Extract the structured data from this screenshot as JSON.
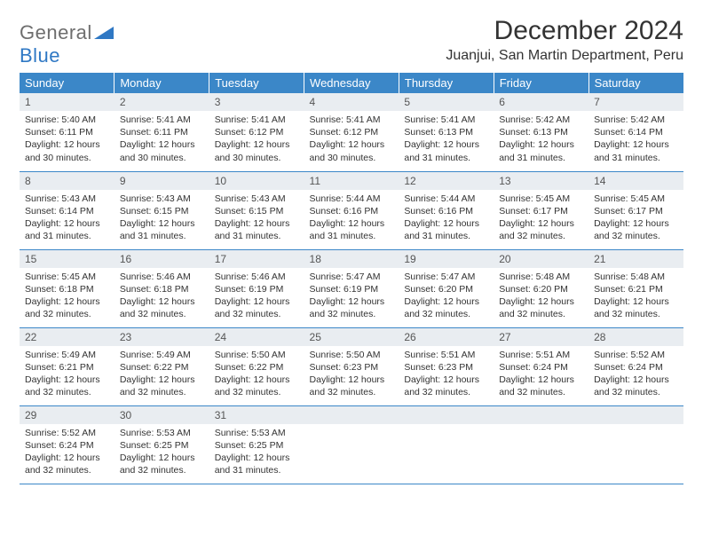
{
  "logo": {
    "word1": "General",
    "word2": "Blue",
    "word1_color": "#6e6e6e",
    "word2_color": "#2f78c4",
    "shape_color": "#2f78c4"
  },
  "title": "December 2024",
  "location": "Juanjui, San Martin Department, Peru",
  "header_bg": "#3b87c8",
  "header_fg": "#ffffff",
  "daynum_bg": "#e9edf1",
  "rule_color": "#3b87c8",
  "text_color": "#333333",
  "body_fontsize": 10.5,
  "weekdays": [
    "Sunday",
    "Monday",
    "Tuesday",
    "Wednesday",
    "Thursday",
    "Friday",
    "Saturday"
  ],
  "days": [
    {
      "n": "1",
      "sunrise": "5:40 AM",
      "sunset": "6:11 PM",
      "day_h": "12",
      "day_m": "30"
    },
    {
      "n": "2",
      "sunrise": "5:41 AM",
      "sunset": "6:11 PM",
      "day_h": "12",
      "day_m": "30"
    },
    {
      "n": "3",
      "sunrise": "5:41 AM",
      "sunset": "6:12 PM",
      "day_h": "12",
      "day_m": "30"
    },
    {
      "n": "4",
      "sunrise": "5:41 AM",
      "sunset": "6:12 PM",
      "day_h": "12",
      "day_m": "30"
    },
    {
      "n": "5",
      "sunrise": "5:41 AM",
      "sunset": "6:13 PM",
      "day_h": "12",
      "day_m": "31"
    },
    {
      "n": "6",
      "sunrise": "5:42 AM",
      "sunset": "6:13 PM",
      "day_h": "12",
      "day_m": "31"
    },
    {
      "n": "7",
      "sunrise": "5:42 AM",
      "sunset": "6:14 PM",
      "day_h": "12",
      "day_m": "31"
    },
    {
      "n": "8",
      "sunrise": "5:43 AM",
      "sunset": "6:14 PM",
      "day_h": "12",
      "day_m": "31"
    },
    {
      "n": "9",
      "sunrise": "5:43 AM",
      "sunset": "6:15 PM",
      "day_h": "12",
      "day_m": "31"
    },
    {
      "n": "10",
      "sunrise": "5:43 AM",
      "sunset": "6:15 PM",
      "day_h": "12",
      "day_m": "31"
    },
    {
      "n": "11",
      "sunrise": "5:44 AM",
      "sunset": "6:16 PM",
      "day_h": "12",
      "day_m": "31"
    },
    {
      "n": "12",
      "sunrise": "5:44 AM",
      "sunset": "6:16 PM",
      "day_h": "12",
      "day_m": "31"
    },
    {
      "n": "13",
      "sunrise": "5:45 AM",
      "sunset": "6:17 PM",
      "day_h": "12",
      "day_m": "32"
    },
    {
      "n": "14",
      "sunrise": "5:45 AM",
      "sunset": "6:17 PM",
      "day_h": "12",
      "day_m": "32"
    },
    {
      "n": "15",
      "sunrise": "5:45 AM",
      "sunset": "6:18 PM",
      "day_h": "12",
      "day_m": "32"
    },
    {
      "n": "16",
      "sunrise": "5:46 AM",
      "sunset": "6:18 PM",
      "day_h": "12",
      "day_m": "32"
    },
    {
      "n": "17",
      "sunrise": "5:46 AM",
      "sunset": "6:19 PM",
      "day_h": "12",
      "day_m": "32"
    },
    {
      "n": "18",
      "sunrise": "5:47 AM",
      "sunset": "6:19 PM",
      "day_h": "12",
      "day_m": "32"
    },
    {
      "n": "19",
      "sunrise": "5:47 AM",
      "sunset": "6:20 PM",
      "day_h": "12",
      "day_m": "32"
    },
    {
      "n": "20",
      "sunrise": "5:48 AM",
      "sunset": "6:20 PM",
      "day_h": "12",
      "day_m": "32"
    },
    {
      "n": "21",
      "sunrise": "5:48 AM",
      "sunset": "6:21 PM",
      "day_h": "12",
      "day_m": "32"
    },
    {
      "n": "22",
      "sunrise": "5:49 AM",
      "sunset": "6:21 PM",
      "day_h": "12",
      "day_m": "32"
    },
    {
      "n": "23",
      "sunrise": "5:49 AM",
      "sunset": "6:22 PM",
      "day_h": "12",
      "day_m": "32"
    },
    {
      "n": "24",
      "sunrise": "5:50 AM",
      "sunset": "6:22 PM",
      "day_h": "12",
      "day_m": "32"
    },
    {
      "n": "25",
      "sunrise": "5:50 AM",
      "sunset": "6:23 PM",
      "day_h": "12",
      "day_m": "32"
    },
    {
      "n": "26",
      "sunrise": "5:51 AM",
      "sunset": "6:23 PM",
      "day_h": "12",
      "day_m": "32"
    },
    {
      "n": "27",
      "sunrise": "5:51 AM",
      "sunset": "6:24 PM",
      "day_h": "12",
      "day_m": "32"
    },
    {
      "n": "28",
      "sunrise": "5:52 AM",
      "sunset": "6:24 PM",
      "day_h": "12",
      "day_m": "32"
    },
    {
      "n": "29",
      "sunrise": "5:52 AM",
      "sunset": "6:24 PM",
      "day_h": "12",
      "day_m": "32"
    },
    {
      "n": "30",
      "sunrise": "5:53 AM",
      "sunset": "6:25 PM",
      "day_h": "12",
      "day_m": "32"
    },
    {
      "n": "31",
      "sunrise": "5:53 AM",
      "sunset": "6:25 PM",
      "day_h": "12",
      "day_m": "31"
    }
  ],
  "labels": {
    "sunrise": "Sunrise: ",
    "sunset": "Sunset: ",
    "daylight_prefix": "Daylight: ",
    "hours_word": " hours",
    "and_word": "and ",
    "minutes_word": " minutes."
  },
  "grid": {
    "rows": 5,
    "cols": 7,
    "start_offset": 0
  }
}
